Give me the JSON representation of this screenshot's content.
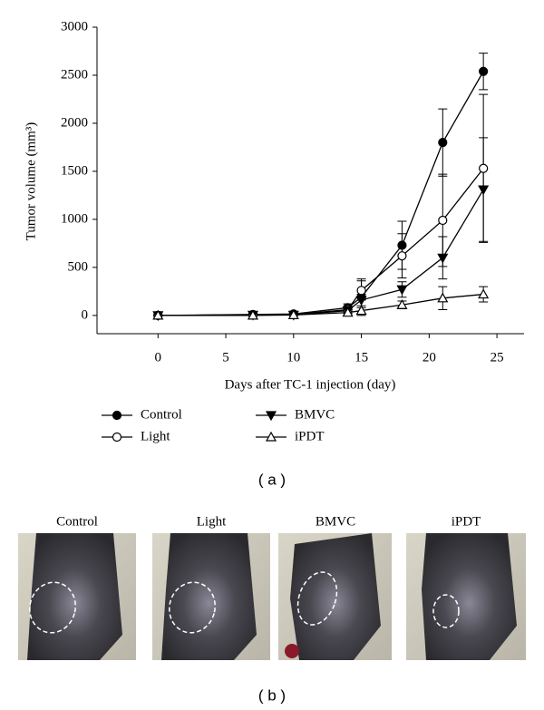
{
  "chart_data": {
    "type": "line",
    "x_label": "Days after TC-1 injection (day)",
    "y_label": "Tumor volume (mm³)",
    "x": [
      0,
      7,
      10,
      14,
      15,
      18,
      21,
      24
    ],
    "series": [
      {
        "name": "Control",
        "color": "#000000",
        "marker": "filled-circle",
        "values": [
          0,
          10,
          15,
          80,
          190,
          730,
          1800,
          2540
        ],
        "errors": [
          0,
          10,
          10,
          40,
          190,
          250,
          350,
          190
        ]
      },
      {
        "name": "Light",
        "color": "#000000",
        "marker": "open-circle",
        "values": [
          0,
          5,
          10,
          60,
          260,
          620,
          990,
          1530
        ],
        "errors": [
          0,
          5,
          5,
          40,
          100,
          230,
          480,
          770
        ]
      },
      {
        "name": "BMVC",
        "color": "#000000",
        "marker": "filled-down-triangle",
        "values": [
          0,
          5,
          5,
          50,
          160,
          270,
          600,
          1310
        ],
        "errors": [
          0,
          5,
          5,
          30,
          60,
          80,
          220,
          540
        ]
      },
      {
        "name": "iPDT",
        "color": "#000000",
        "marker": "open-up-triangle",
        "values": [
          0,
          0,
          5,
          30,
          50,
          110,
          180,
          220
        ],
        "errors": [
          0,
          0,
          5,
          30,
          30,
          40,
          120,
          80
        ]
      }
    ],
    "xlim": [
      -4.5,
      27
    ],
    "ylim": [
      -190,
      3000
    ],
    "xticks": [
      0,
      5,
      10,
      15,
      20,
      25
    ],
    "yticks": [
      0,
      500,
      1000,
      1500,
      2000,
      2500,
      3000
    ],
    "grid": false
  },
  "figure": {
    "panel_a_label": "( a )",
    "panel_b_label": "( b )",
    "photo_labels": [
      "Control",
      "Light",
      "BMVC",
      "iPDT"
    ]
  }
}
